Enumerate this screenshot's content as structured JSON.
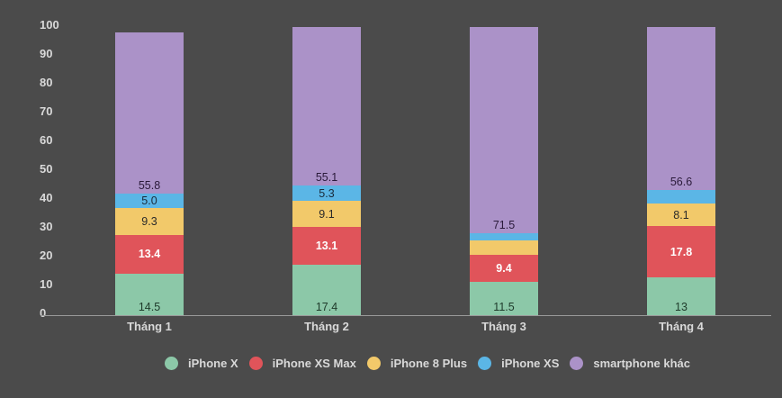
{
  "chart_data": {
    "type": "bar",
    "stacked": true,
    "title": "",
    "xlabel": "",
    "ylabel": "",
    "ylim": [
      0,
      100
    ],
    "yticks": [
      0,
      10,
      20,
      30,
      40,
      50,
      60,
      70,
      80,
      90,
      100
    ],
    "categories": [
      "Tháng 1",
      "Tháng 2",
      "Tháng 3",
      "Tháng 4"
    ],
    "series": [
      {
        "name": "iPhone X",
        "color": "#8cc8a8",
        "label_color": "#1e3a2a",
        "values": [
          14.5,
          17.4,
          11.5,
          13
        ],
        "labels": [
          "14.5",
          "17.4",
          "11.5",
          "13"
        ]
      },
      {
        "name": "iPhone XS Max",
        "color": "#e0545a",
        "label_color": "#ffffff",
        "values": [
          13.4,
          13.1,
          9.4,
          17.8
        ],
        "labels": [
          "13.4",
          "13.1",
          "9.4",
          "17.8"
        ]
      },
      {
        "name": "iPhone 8 Plus",
        "color": "#f2c96a",
        "label_color": "#2a2a2a",
        "values": [
          9.3,
          9.1,
          5.0,
          8.1
        ],
        "labels": [
          "9.3",
          "9.1",
          "",
          "8.1"
        ]
      },
      {
        "name": "iPhone XS",
        "color": "#5bb6e6",
        "label_color": "#1a2a3a",
        "values": [
          5.0,
          5.3,
          2.5,
          4.5
        ],
        "labels": [
          "5.0",
          "5.3",
          "",
          ""
        ]
      },
      {
        "name": "smartphone khác",
        "color": "#ab92c8",
        "label_color": "#2a1a3a",
        "values": [
          55.8,
          55.1,
          71.5,
          56.6
        ],
        "labels": [
          "55.8",
          "55.1",
          "71.5",
          "56.6"
        ]
      }
    ],
    "legend_position": "bottom",
    "grid": false
  },
  "legend": {
    "items": [
      {
        "label": "iPhone X",
        "color": "#8cc8a8"
      },
      {
        "label": "iPhone XS Max",
        "color": "#e0545a"
      },
      {
        "label": "iPhone 8 Plus",
        "color": "#f2c96a"
      },
      {
        "label": "iPhone XS",
        "color": "#5bb6e6"
      },
      {
        "label": "smartphone khác",
        "color": "#ab92c8"
      }
    ]
  }
}
